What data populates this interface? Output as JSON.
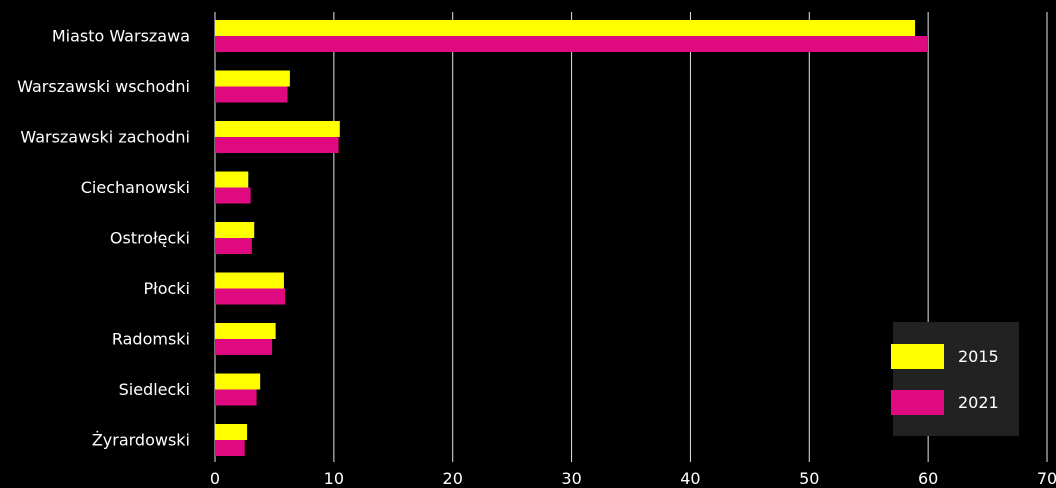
{
  "chart_data": {
    "type": "bar",
    "orientation": "horizontal",
    "categories": [
      "Miasto Warszawa",
      "Warszawski wschodni",
      "Warszawski zachodni",
      "Ciechanowski",
      "Ostrołęcki",
      "Płocki",
      "Radomski",
      "Siedlecki",
      "Żyrardowski"
    ],
    "series": [
      {
        "name": "2015",
        "color": "#ffff00",
        "values": [
          58.9,
          6.3,
          10.5,
          2.8,
          3.3,
          5.8,
          5.1,
          3.8,
          2.7
        ]
      },
      {
        "name": "2021",
        "color": "#e00a80",
        "values": [
          59.9,
          6.1,
          10.4,
          3.0,
          3.1,
          5.9,
          4.8,
          3.5,
          2.5
        ]
      }
    ],
    "xlim": [
      0,
      70
    ],
    "xticks": [
      0,
      10,
      20,
      30,
      40,
      50,
      60,
      70
    ],
    "grid": "vertical",
    "legend": {
      "position": "bottom-right",
      "background": "#222222"
    },
    "background": "#000000"
  }
}
